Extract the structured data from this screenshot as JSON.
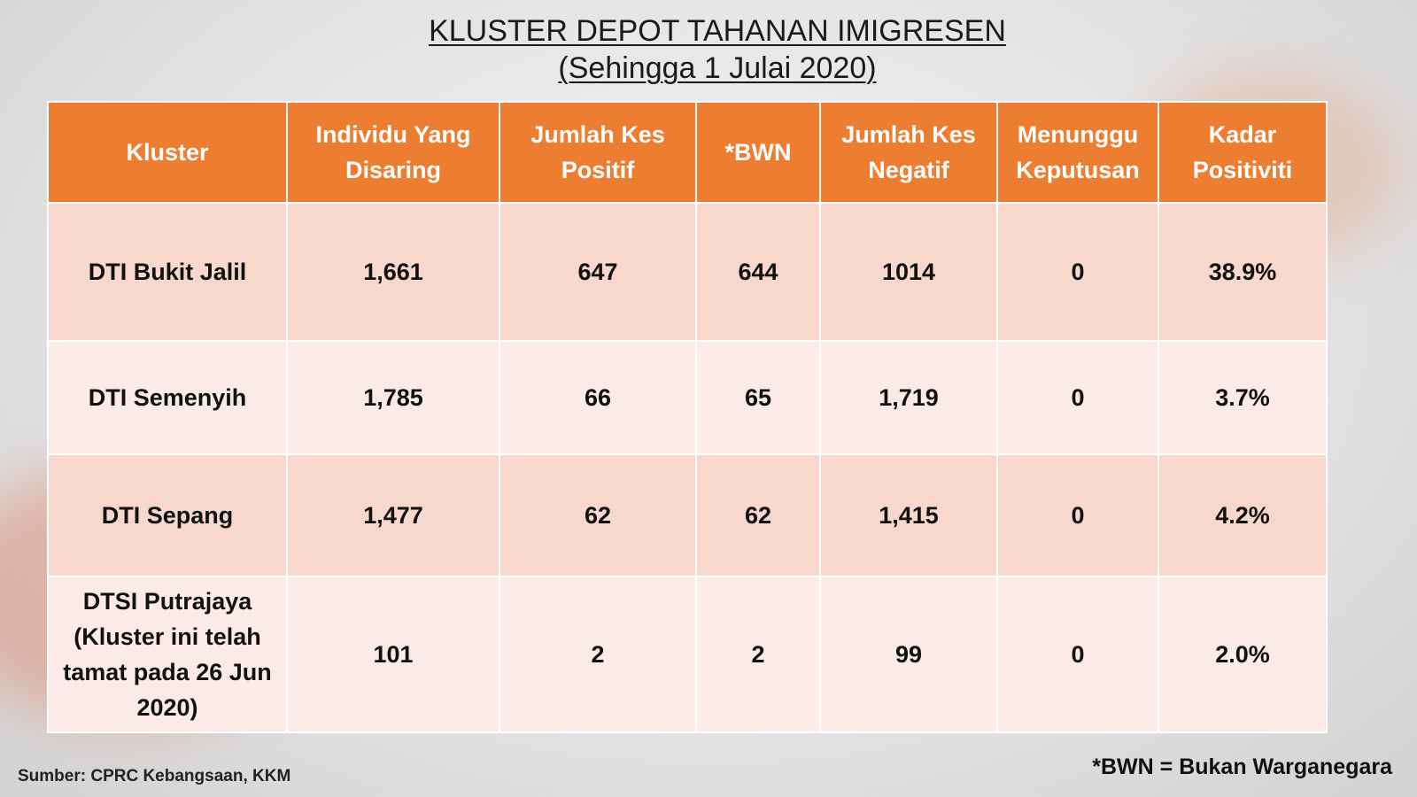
{
  "title": {
    "line1": "KLUSTER DEPOT TAHANAN IMIGRESEN",
    "line2": "(Sehingga 1 Julai 2020)"
  },
  "table": {
    "headers": [
      "Kluster",
      "Individu Yang Disaring",
      "Jumlah Kes Positif",
      "*BWN",
      "Jumlah Kes Negatif",
      "Menunggu Keputusan",
      "Kadar Positiviti"
    ],
    "rows": [
      [
        "DTI Bukit Jalil",
        "1,661",
        "647",
        "644",
        "1014",
        "0",
        "38.9%"
      ],
      [
        "DTI Semenyih",
        "1,785",
        "66",
        "65",
        "1,719",
        "0",
        "3.7%"
      ],
      [
        "DTI Sepang",
        "1,477",
        "62",
        "62",
        "1,415",
        "0",
        "4.2%"
      ],
      [
        "DTSI Putrajaya (Kluster ini telah tamat pada 26 Jun 2020)",
        "101",
        "2",
        "2",
        "99",
        "0",
        "2.0%"
      ]
    ]
  },
  "footer": {
    "source": "Sumber: CPRC Kebangsaan, KKM",
    "note": "*BWN = Bukan Warganegara"
  },
  "colors": {
    "header_bg": "#ed7d31",
    "row_dark": "#f8d8cc",
    "row_light": "#fbeae5"
  }
}
